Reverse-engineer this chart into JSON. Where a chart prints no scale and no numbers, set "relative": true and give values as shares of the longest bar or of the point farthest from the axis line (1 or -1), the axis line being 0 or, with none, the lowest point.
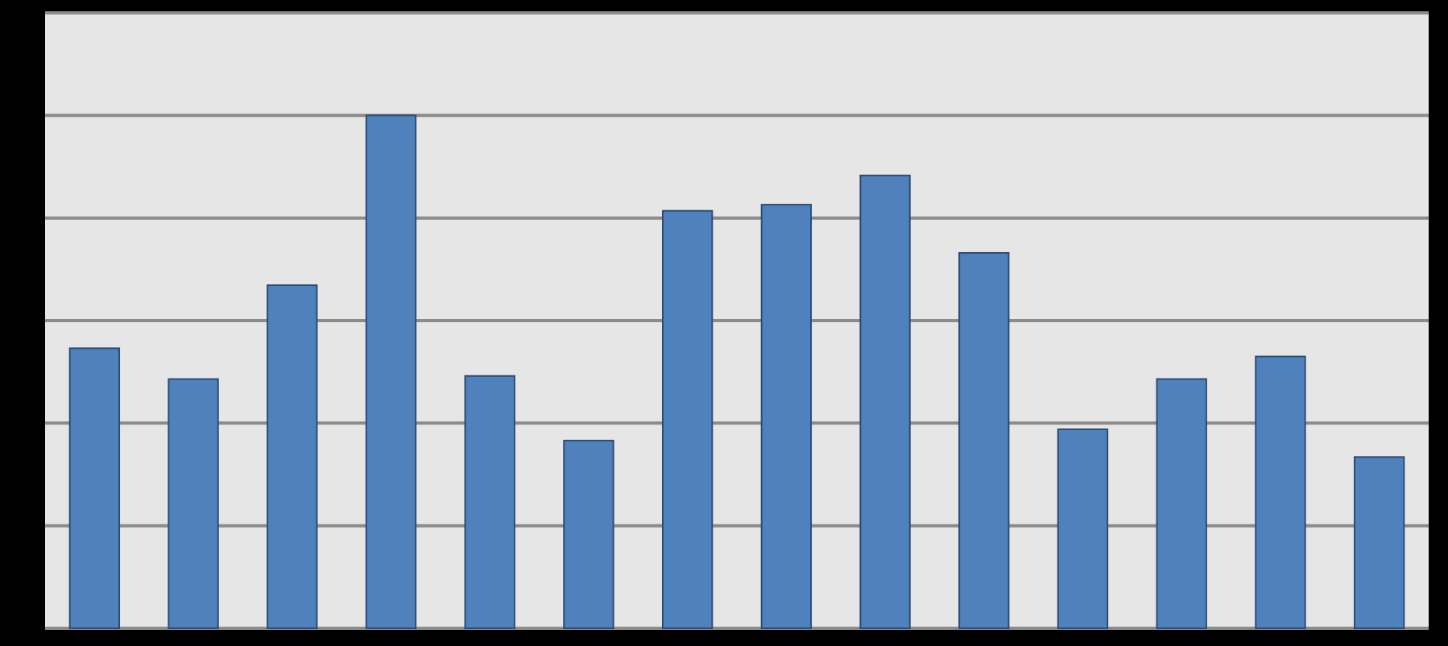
{
  "chart_data": {
    "type": "bar",
    "relative": true,
    "grid": true,
    "categories": [
      null,
      null,
      null,
      null,
      null,
      null,
      null,
      null,
      null,
      null,
      null,
      null,
      null,
      null
    ],
    "values": [
      0.546,
      0.486,
      0.669,
      1,
      0.492,
      0.366,
      0.814,
      0.826,
      0.883,
      0.732,
      0.388,
      0.486,
      0.53,
      0.334
    ],
    "color": "#4f81bd"
  }
}
